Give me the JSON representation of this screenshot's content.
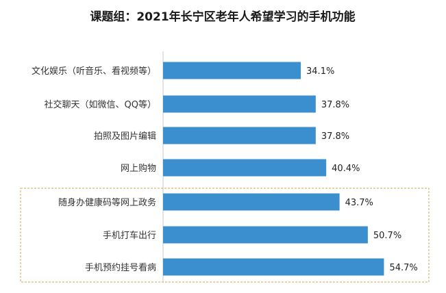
{
  "chart_data": {
    "type": "bar",
    "orientation": "horizontal",
    "title": "课题组：2021年长宁区老年人希望学习的手机功能",
    "categories": [
      "文化娱乐（听音乐、看视频等）",
      "社交聊天（如微信、QQ等）",
      "拍照及图片编辑",
      "网上购物",
      "随身办健康码等网上政务",
      "手机打车出行",
      "手机预约挂号看病"
    ],
    "values": [
      34.1,
      37.8,
      37.8,
      40.4,
      43.7,
      50.7,
      54.7
    ],
    "value_labels": [
      "34.1%",
      "37.8%",
      "37.8%",
      "40.4%",
      "43.7%",
      "50.7%",
      "54.7%"
    ],
    "xlim": [
      0,
      60
    ],
    "grid": false,
    "legend": "none",
    "highlighted_categories": [
      "随身办健康码等网上政务",
      "手机打车出行",
      "手机预约挂号看病"
    ],
    "colors": {
      "bar": "#3b8fcf",
      "axis": "#c8c8c8",
      "highlight_box": "#d9b870"
    }
  }
}
